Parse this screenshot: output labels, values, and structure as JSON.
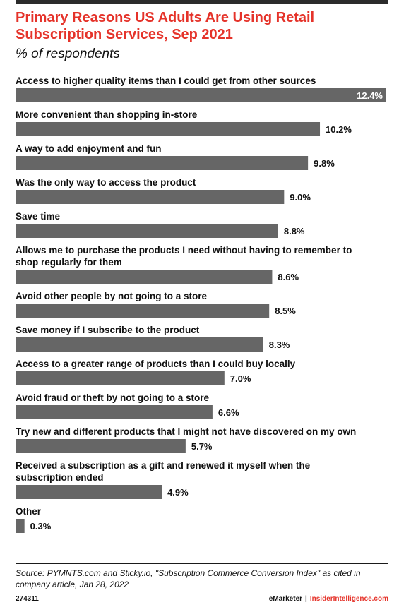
{
  "header": {
    "title": "Primary Reasons US Adults Are Using Retail Subscription Services, Sep 2021",
    "subtitle": "% of respondents"
  },
  "chart_data": {
    "type": "bar",
    "orientation": "horizontal",
    "categories": [
      "Access to higher quality items than I could get from other sources",
      "More convenient than shopping in-store",
      "A way to add enjoyment and fun",
      "Was the only way to access the product",
      "Save time",
      "Allows me to purchase the products I need without having to remember to shop regularly for them",
      "Avoid other people by not going to a store",
      "Save money if I subscribe to the product",
      "Access to a greater range of products than I could buy locally",
      "Avoid fraud or theft by not going to a store",
      "Try new and different products that I might not have discovered on my own",
      "Received a subscription as a gift and renewed it myself when the subscription ended",
      "Other"
    ],
    "category_lines": [
      [
        "Access to higher quality items than I could get from other sources"
      ],
      [
        "More convenient than shopping in-store"
      ],
      [
        "A way to add enjoyment and fun"
      ],
      [
        "Was the only way to access the product"
      ],
      [
        "Save time"
      ],
      [
        "Allows me to purchase the products I need without having to remember to",
        "shop regularly for them"
      ],
      [
        "Avoid other people by not going to a store"
      ],
      [
        "Save money if I subscribe to the product"
      ],
      [
        "Access to a greater range of products than I could buy locally"
      ],
      [
        "Avoid fraud or theft by not going to a store"
      ],
      [
        "Try new and different products that I might not have discovered on my own"
      ],
      [
        "Received a subscription as a gift and renewed it myself when the",
        "subscription ended"
      ],
      [
        "Other"
      ]
    ],
    "values": [
      12.4,
      10.2,
      9.8,
      9.0,
      8.8,
      8.6,
      8.5,
      8.3,
      7.0,
      6.6,
      5.7,
      4.9,
      0.3
    ],
    "value_labels": [
      "12.4%",
      "10.2%",
      "9.8%",
      "9.0%",
      "8.8%",
      "8.6%",
      "8.5%",
      "8.3%",
      "7.0%",
      "6.6%",
      "5.7%",
      "4.9%",
      "0.3%"
    ],
    "xlim": [
      0,
      12.4
    ],
    "bar_color": "#666666",
    "grid": false
  },
  "footer": {
    "source": "Source: PYMNTS.com and Sticky.io, \"Subscription Commerce Conversion Index\" as cited in company article, Jan 28, 2022",
    "chart_id": "274311",
    "brand_left": "eMarketer",
    "brand_sep": "|",
    "brand_right": "InsiderIntelligence.com"
  },
  "colors": {
    "accent": "#e5332a",
    "bar": "#666666"
  }
}
